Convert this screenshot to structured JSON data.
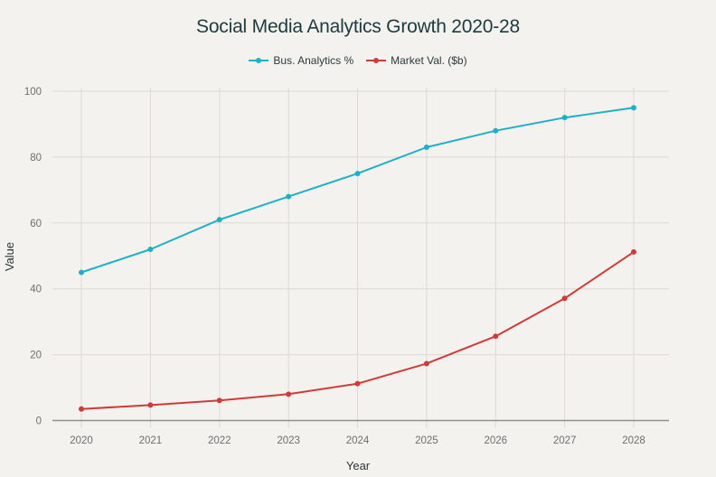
{
  "chart_data": {
    "type": "line",
    "title": "Social Media Analytics Growth 2020-28",
    "xlabel": "Year",
    "ylabel": "Value",
    "ylim": [
      0,
      100
    ],
    "yticks": [
      0,
      20,
      40,
      60,
      80,
      100
    ],
    "grid": true,
    "legend_position": "top-center",
    "x": [
      "2020",
      "2021",
      "2022",
      "2023",
      "2024",
      "2025",
      "2026",
      "2027",
      "2028"
    ],
    "series": [
      {
        "name": "Bus. Analytics %",
        "color": "#1fb0c8",
        "values": [
          45,
          52,
          61,
          68,
          75,
          83,
          88,
          92,
          95
        ]
      },
      {
        "name": "Market Val. ($b)",
        "color": "#d13a3a",
        "values": [
          3.5,
          4.7,
          6.1,
          8.0,
          11.2,
          17.3,
          25.6,
          37.1,
          51.2
        ]
      }
    ]
  },
  "colors": {
    "background": "#f3f2ee",
    "grid": "#dcdad3",
    "axis": "#8f8f8c"
  }
}
